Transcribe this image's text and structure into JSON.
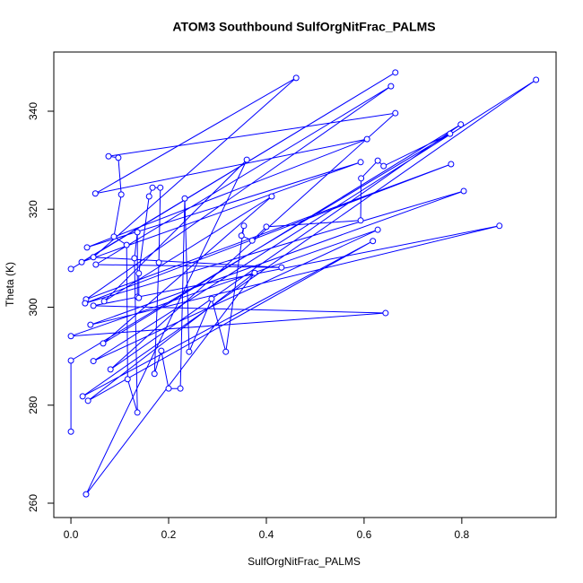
{
  "chart_data": {
    "type": "line",
    "title": "ATOM3 Southbound SulfOrgNitFrac_PALMS",
    "x_label": "SulfOrgNitFrac_PALMS",
    "y_label": "Theta (K)",
    "color": "#0000ff",
    "markers": true,
    "x": [
      0.0,
      0.664,
      0.022,
      0.593,
      0.033,
      0.606,
      0.05,
      0.461,
      0.046,
      0.431,
      0.051,
      0.655,
      0.031,
      0.778,
      0.029,
      0.804,
      0.04,
      0.877,
      0.046,
      0.644,
      0.0,
      0.628,
      0.046,
      0.952,
      0.024,
      0.618,
      0.035,
      0.376,
      0.031,
      0.36,
      0.068,
      0.411,
      0.066,
      0.798,
      0.081,
      0.664,
      0.077,
      0.097,
      0.103,
      0.088,
      0.114,
      0.116,
      0.136,
      0.13,
      0.136,
      0.136,
      0.139,
      0.139,
      0.16,
      0.167,
      0.183,
      0.18,
      0.171,
      0.185,
      0.2,
      0.224,
      0.233,
      0.242,
      0.288,
      0.317,
      0.354,
      0.349,
      0.371,
      0.4,
      0.593,
      0.594,
      0.628,
      0.64,
      0.776,
      0.0,
      0.0
    ],
    "values": [
      307.8,
      347.9,
      309.2,
      329.6,
      312.2,
      334.3,
      323.2,
      346.8,
      310.2,
      308.1,
      308.7,
      345.1,
      301.6,
      329.2,
      300.8,
      323.7,
      296.4,
      316.6,
      300.3,
      298.8,
      294.1,
      315.8,
      289.0,
      346.4,
      281.8,
      313.5,
      280.9,
      307.0,
      261.8,
      330.1,
      301.2,
      322.6,
      292.6,
      337.3,
      287.3,
      339.6,
      330.8,
      330.5,
      323.0,
      314.4,
      312.7,
      285.3,
      278.5,
      310.0,
      315.3,
      302.1,
      301.9,
      306.9,
      322.6,
      324.4,
      324.4,
      309.1,
      286.4,
      291.1,
      283.4,
      283.4,
      322.2,
      290.9,
      301.7,
      290.9,
      316.6,
      314.6,
      313.6,
      316.4,
      317.7,
      326.3,
      329.9,
      328.8,
      335.4,
      289.1,
      274.6
    ],
    "xlim": [
      -0.035,
      0.993
    ],
    "ylim": [
      257.07,
      352.08
    ],
    "xticks": [
      {
        "value": 0,
        "label": "0.0"
      },
      0.2,
      0.4,
      0.6,
      0.8
    ],
    "yticks": [
      260,
      280,
      300,
      320,
      340
    ]
  }
}
